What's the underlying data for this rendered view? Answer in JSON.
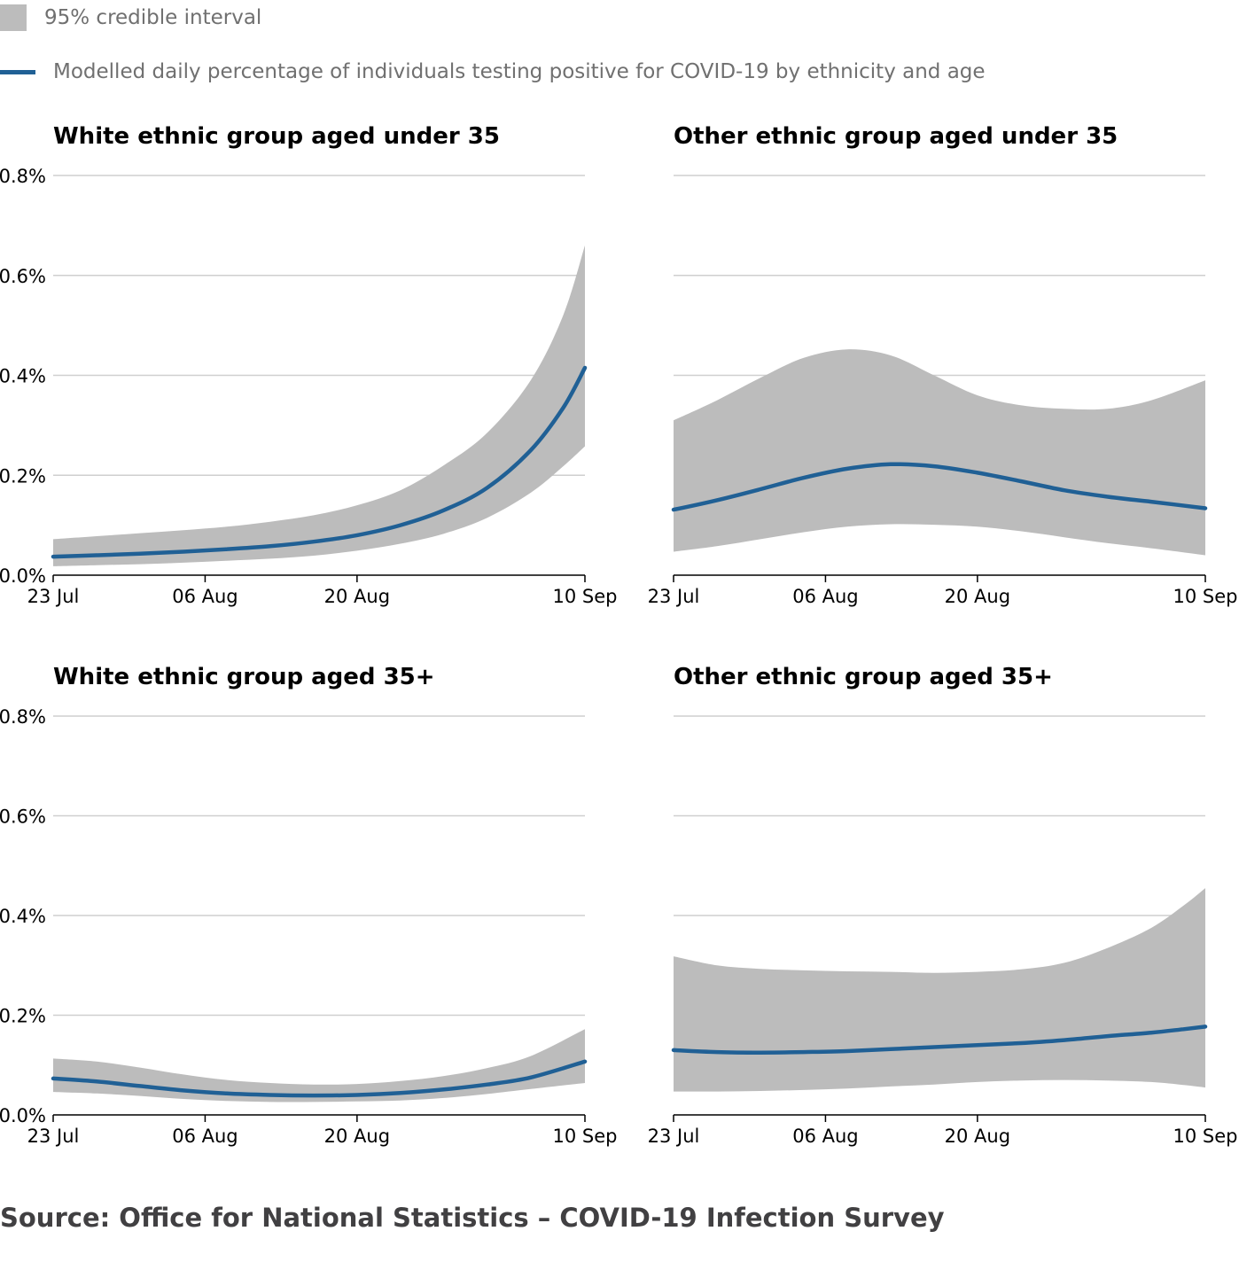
{
  "legend": {
    "interval_label": "95% credible interval",
    "line_label": "Modelled daily percentage of individuals testing positive for COVID-19 by ethnicity and age"
  },
  "colors": {
    "band": "#bcbcbc",
    "line": "#206095",
    "grid": "#cfcfcf",
    "axis": "#000000"
  },
  "source": "Source: Office for National Statistics – COVID-19 Infection Survey",
  "chart_data": [
    {
      "type": "line",
      "title": "White ethnic group aged under 35",
      "x_ticks": [
        "23 Jul",
        "06 Aug",
        "20 Aug",
        "10 Sep"
      ],
      "x_tick_dates": [
        "2020-07-23",
        "2020-08-06",
        "2020-08-20",
        "2020-09-10"
      ],
      "y_ticks": [
        "0.0%",
        "0.2%",
        "0.4%",
        "0.6%",
        "0.8%"
      ],
      "ylim": [
        0,
        0.8
      ],
      "x": [
        "2020-07-23",
        "2020-07-27",
        "2020-07-31",
        "2020-08-04",
        "2020-08-08",
        "2020-08-12",
        "2020-08-16",
        "2020-08-20",
        "2020-08-24",
        "2020-08-28",
        "2020-09-01",
        "2020-09-05",
        "2020-09-08",
        "2020-09-10"
      ],
      "series": [
        {
          "name": "Modelled daily percentage of individuals testing positive for COVID-19 by ethnicity and age",
          "values": [
            0.037,
            0.04,
            0.043,
            0.047,
            0.052,
            0.058,
            0.067,
            0.08,
            0.1,
            0.13,
            0.175,
            0.25,
            0.335,
            0.415
          ]
        },
        {
          "name": "95% credible interval",
          "lower": [
            0.018,
            0.02,
            0.022,
            0.025,
            0.029,
            0.033,
            0.039,
            0.049,
            0.063,
            0.083,
            0.115,
            0.165,
            0.218,
            0.258
          ],
          "upper": [
            0.072,
            0.078,
            0.084,
            0.09,
            0.097,
            0.107,
            0.12,
            0.14,
            0.17,
            0.22,
            0.285,
            0.39,
            0.52,
            0.66
          ]
        }
      ]
    },
    {
      "type": "line",
      "title": "Other ethnic group aged under 35",
      "x_ticks": [
        "23 Jul",
        "06 Aug",
        "20 Aug",
        "10 Sep"
      ],
      "x_tick_dates": [
        "2020-07-23",
        "2020-08-06",
        "2020-08-20",
        "2020-09-10"
      ],
      "y_ticks": [
        "0.0%",
        "0.2%",
        "0.4%",
        "0.6%",
        "0.8%"
      ],
      "ylim": [
        0,
        0.8
      ],
      "x": [
        "2020-07-23",
        "2020-07-27",
        "2020-07-31",
        "2020-08-04",
        "2020-08-08",
        "2020-08-12",
        "2020-08-16",
        "2020-08-20",
        "2020-08-24",
        "2020-08-28",
        "2020-09-01",
        "2020-09-05",
        "2020-09-10"
      ],
      "series": [
        {
          "name": "Modelled daily percentage of individuals testing positive for COVID-19 by ethnicity and age",
          "values": [
            0.131,
            0.15,
            0.172,
            0.195,
            0.213,
            0.222,
            0.218,
            0.205,
            0.188,
            0.17,
            0.157,
            0.147,
            0.134
          ]
        },
        {
          "name": "95% credible interval",
          "lower": [
            0.047,
            0.058,
            0.072,
            0.086,
            0.097,
            0.102,
            0.101,
            0.097,
            0.088,
            0.076,
            0.064,
            0.054,
            0.04
          ],
          "upper": [
            0.31,
            0.35,
            0.395,
            0.435,
            0.452,
            0.44,
            0.4,
            0.36,
            0.34,
            0.333,
            0.333,
            0.35,
            0.39
          ]
        }
      ]
    },
    {
      "type": "line",
      "title": "White ethnic group aged 35+",
      "x_ticks": [
        "23 Jul",
        "06 Aug",
        "20 Aug",
        "10 Sep"
      ],
      "x_tick_dates": [
        "2020-07-23",
        "2020-08-06",
        "2020-08-20",
        "2020-09-10"
      ],
      "y_ticks": [
        "0.0%",
        "0.2%",
        "0.4%",
        "0.6%",
        "0.8%"
      ],
      "ylim": [
        0,
        0.8
      ],
      "x": [
        "2020-07-23",
        "2020-07-27",
        "2020-07-31",
        "2020-08-04",
        "2020-08-08",
        "2020-08-12",
        "2020-08-16",
        "2020-08-20",
        "2020-08-24",
        "2020-08-28",
        "2020-09-01",
        "2020-09-05",
        "2020-09-10"
      ],
      "series": [
        {
          "name": "Modelled daily percentage of individuals testing positive for COVID-19 by ethnicity and age",
          "values": [
            0.073,
            0.067,
            0.058,
            0.049,
            0.043,
            0.04,
            0.039,
            0.04,
            0.044,
            0.051,
            0.061,
            0.075,
            0.107
          ]
        },
        {
          "name": "95% credible interval",
          "lower": [
            0.046,
            0.043,
            0.038,
            0.032,
            0.028,
            0.026,
            0.026,
            0.027,
            0.029,
            0.034,
            0.042,
            0.052,
            0.064
          ]
        },
        {
          "name": "",
          "upper": [
            0.113,
            0.107,
            0.095,
            0.081,
            0.07,
            0.064,
            0.061,
            0.062,
            0.068,
            0.078,
            0.094,
            0.118,
            0.172
          ]
        }
      ]
    },
    {
      "type": "line",
      "title": "Other ethnic group aged 35+",
      "x_ticks": [
        "23 Jul",
        "06 Aug",
        "20 Aug",
        "10 Sep"
      ],
      "x_tick_dates": [
        "2020-07-23",
        "2020-08-06",
        "2020-08-20",
        "2020-09-10"
      ],
      "y_ticks": [
        "0.0%",
        "0.2%",
        "0.4%",
        "0.6%",
        "0.8%"
      ],
      "ylim": [
        0,
        0.8
      ],
      "x": [
        "2020-07-23",
        "2020-07-27",
        "2020-07-31",
        "2020-08-04",
        "2020-08-08",
        "2020-08-12",
        "2020-08-16",
        "2020-08-20",
        "2020-08-24",
        "2020-08-28",
        "2020-09-01",
        "2020-09-05",
        "2020-09-08",
        "2020-09-10"
      ],
      "series": [
        {
          "name": "Modelled daily percentage of individuals testing positive for COVID-19 by ethnicity and age",
          "values": [
            0.13,
            0.126,
            0.125,
            0.126,
            0.128,
            0.132,
            0.136,
            0.14,
            0.144,
            0.15,
            0.158,
            0.165,
            0.172,
            0.177
          ]
        },
        {
          "name": "95% credible interval",
          "lower": [
            0.047,
            0.047,
            0.048,
            0.05,
            0.053,
            0.057,
            0.061,
            0.066,
            0.069,
            0.07,
            0.069,
            0.066,
            0.06,
            0.055
          ],
          "upper": [
            0.318,
            0.3,
            0.293,
            0.29,
            0.288,
            0.287,
            0.285,
            0.287,
            0.292,
            0.305,
            0.335,
            0.375,
            0.42,
            0.455
          ]
        }
      ]
    }
  ]
}
